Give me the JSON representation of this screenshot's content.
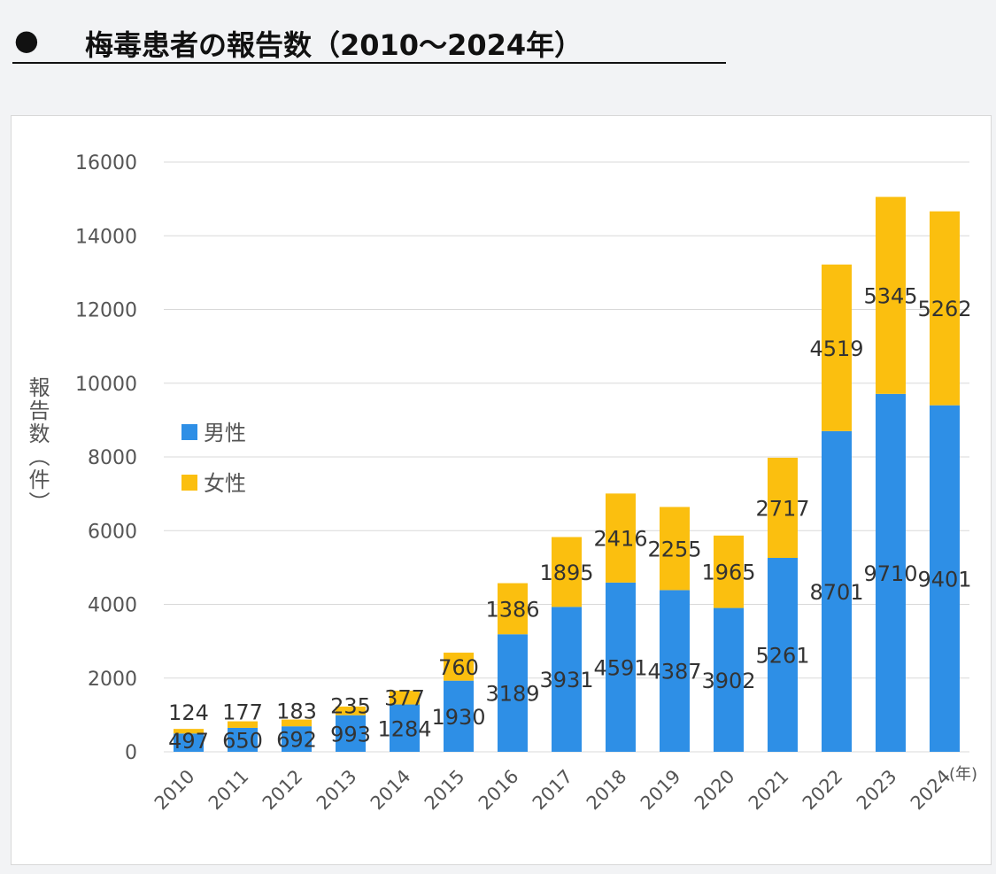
{
  "title": {
    "bullet": "●",
    "text": "梅毒患者の報告数（2010～2024年）"
  },
  "chart_data": {
    "type": "bar",
    "stacked": true,
    "title": "梅毒患者の報告数（2010～2024年）",
    "xlabel": "(年)",
    "ylabel": "報告数（件）",
    "ylim": [
      0,
      16000
    ],
    "yticks": [
      0,
      2000,
      4000,
      6000,
      8000,
      10000,
      12000,
      14000,
      16000
    ],
    "grid": true,
    "legend_position": "left",
    "categories": [
      "2010",
      "2011",
      "2012",
      "2013",
      "2014",
      "2015",
      "2016",
      "2017",
      "2018",
      "2019",
      "2020",
      "2021",
      "2022",
      "2023",
      "2024"
    ],
    "series": [
      {
        "name": "男性",
        "color": "#2e8fe6",
        "values": [
          497,
          650,
          692,
          993,
          1284,
          1930,
          3189,
          3931,
          4591,
          4387,
          3902,
          5261,
          8701,
          9710,
          9401
        ]
      },
      {
        "name": "女性",
        "color": "#fbbf0f",
        "values": [
          124,
          177,
          183,
          235,
          377,
          760,
          1386,
          1895,
          2416,
          2255,
          1965,
          2717,
          4519,
          5345,
          5262
        ]
      }
    ]
  }
}
